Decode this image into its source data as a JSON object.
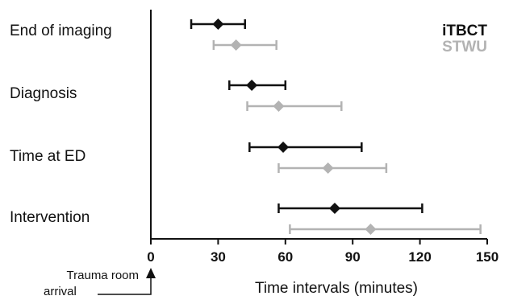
{
  "chart_data": {
    "type": "dot-with-error-bars",
    "categories": [
      "End of imaging",
      "Diagnosis",
      "Time at ED",
      "Intervention"
    ],
    "series": [
      {
        "name": "iTBCT",
        "color": "#111111",
        "values": [
          30,
          45,
          59,
          82
        ],
        "lower": [
          18,
          35,
          44,
          57
        ],
        "upper": [
          42,
          60,
          94,
          121
        ]
      },
      {
        "name": "STWU",
        "color": "#b3b3b3",
        "values": [
          38,
          57,
          79,
          98
        ],
        "lower": [
          28,
          43,
          57,
          62
        ],
        "upper": [
          56,
          85,
          105,
          147
        ]
      }
    ],
    "xlabel": "Time intervals (minutes)",
    "xlim": [
      0,
      150
    ],
    "xticks": [
      0,
      30,
      60,
      90,
      120,
      150
    ],
    "grid": false,
    "legend": "top-right",
    "annotation": {
      "line1": "Trauma room",
      "line2": "arrival"
    }
  }
}
